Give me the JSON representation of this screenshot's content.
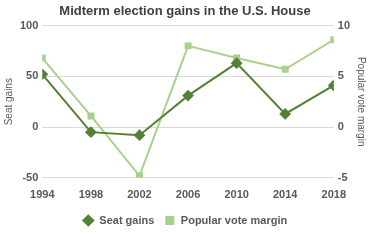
{
  "chart_data": {
    "type": "line",
    "title": "Midterm election gains in the U.S. House",
    "categories": [
      "1994",
      "1998",
      "2002",
      "2006",
      "2010",
      "2014",
      "2018"
    ],
    "series": [
      {
        "name": "Seat gains",
        "color": "#548235",
        "marker": "diamond",
        "values": [
          52,
          -5,
          -8,
          31,
          63,
          13,
          41
        ]
      },
      {
        "name": "Popular vote margin",
        "color": "#a9d18e",
        "marker": "square",
        "axis": "y2",
        "values": [
          6.8,
          1.1,
          -4.8,
          8.0,
          6.8,
          5.7,
          8.6
        ]
      }
    ],
    "y_label": "Seat gains",
    "y2_label": "Popular vote margin",
    "ylim": [
      -50,
      100
    ],
    "yticks": [
      -50,
      0,
      50,
      100
    ],
    "y2lim": [
      -5,
      10
    ],
    "y2ticks": [
      -5,
      0,
      5,
      10
    ],
    "grid": true,
    "legend": "bottom"
  }
}
